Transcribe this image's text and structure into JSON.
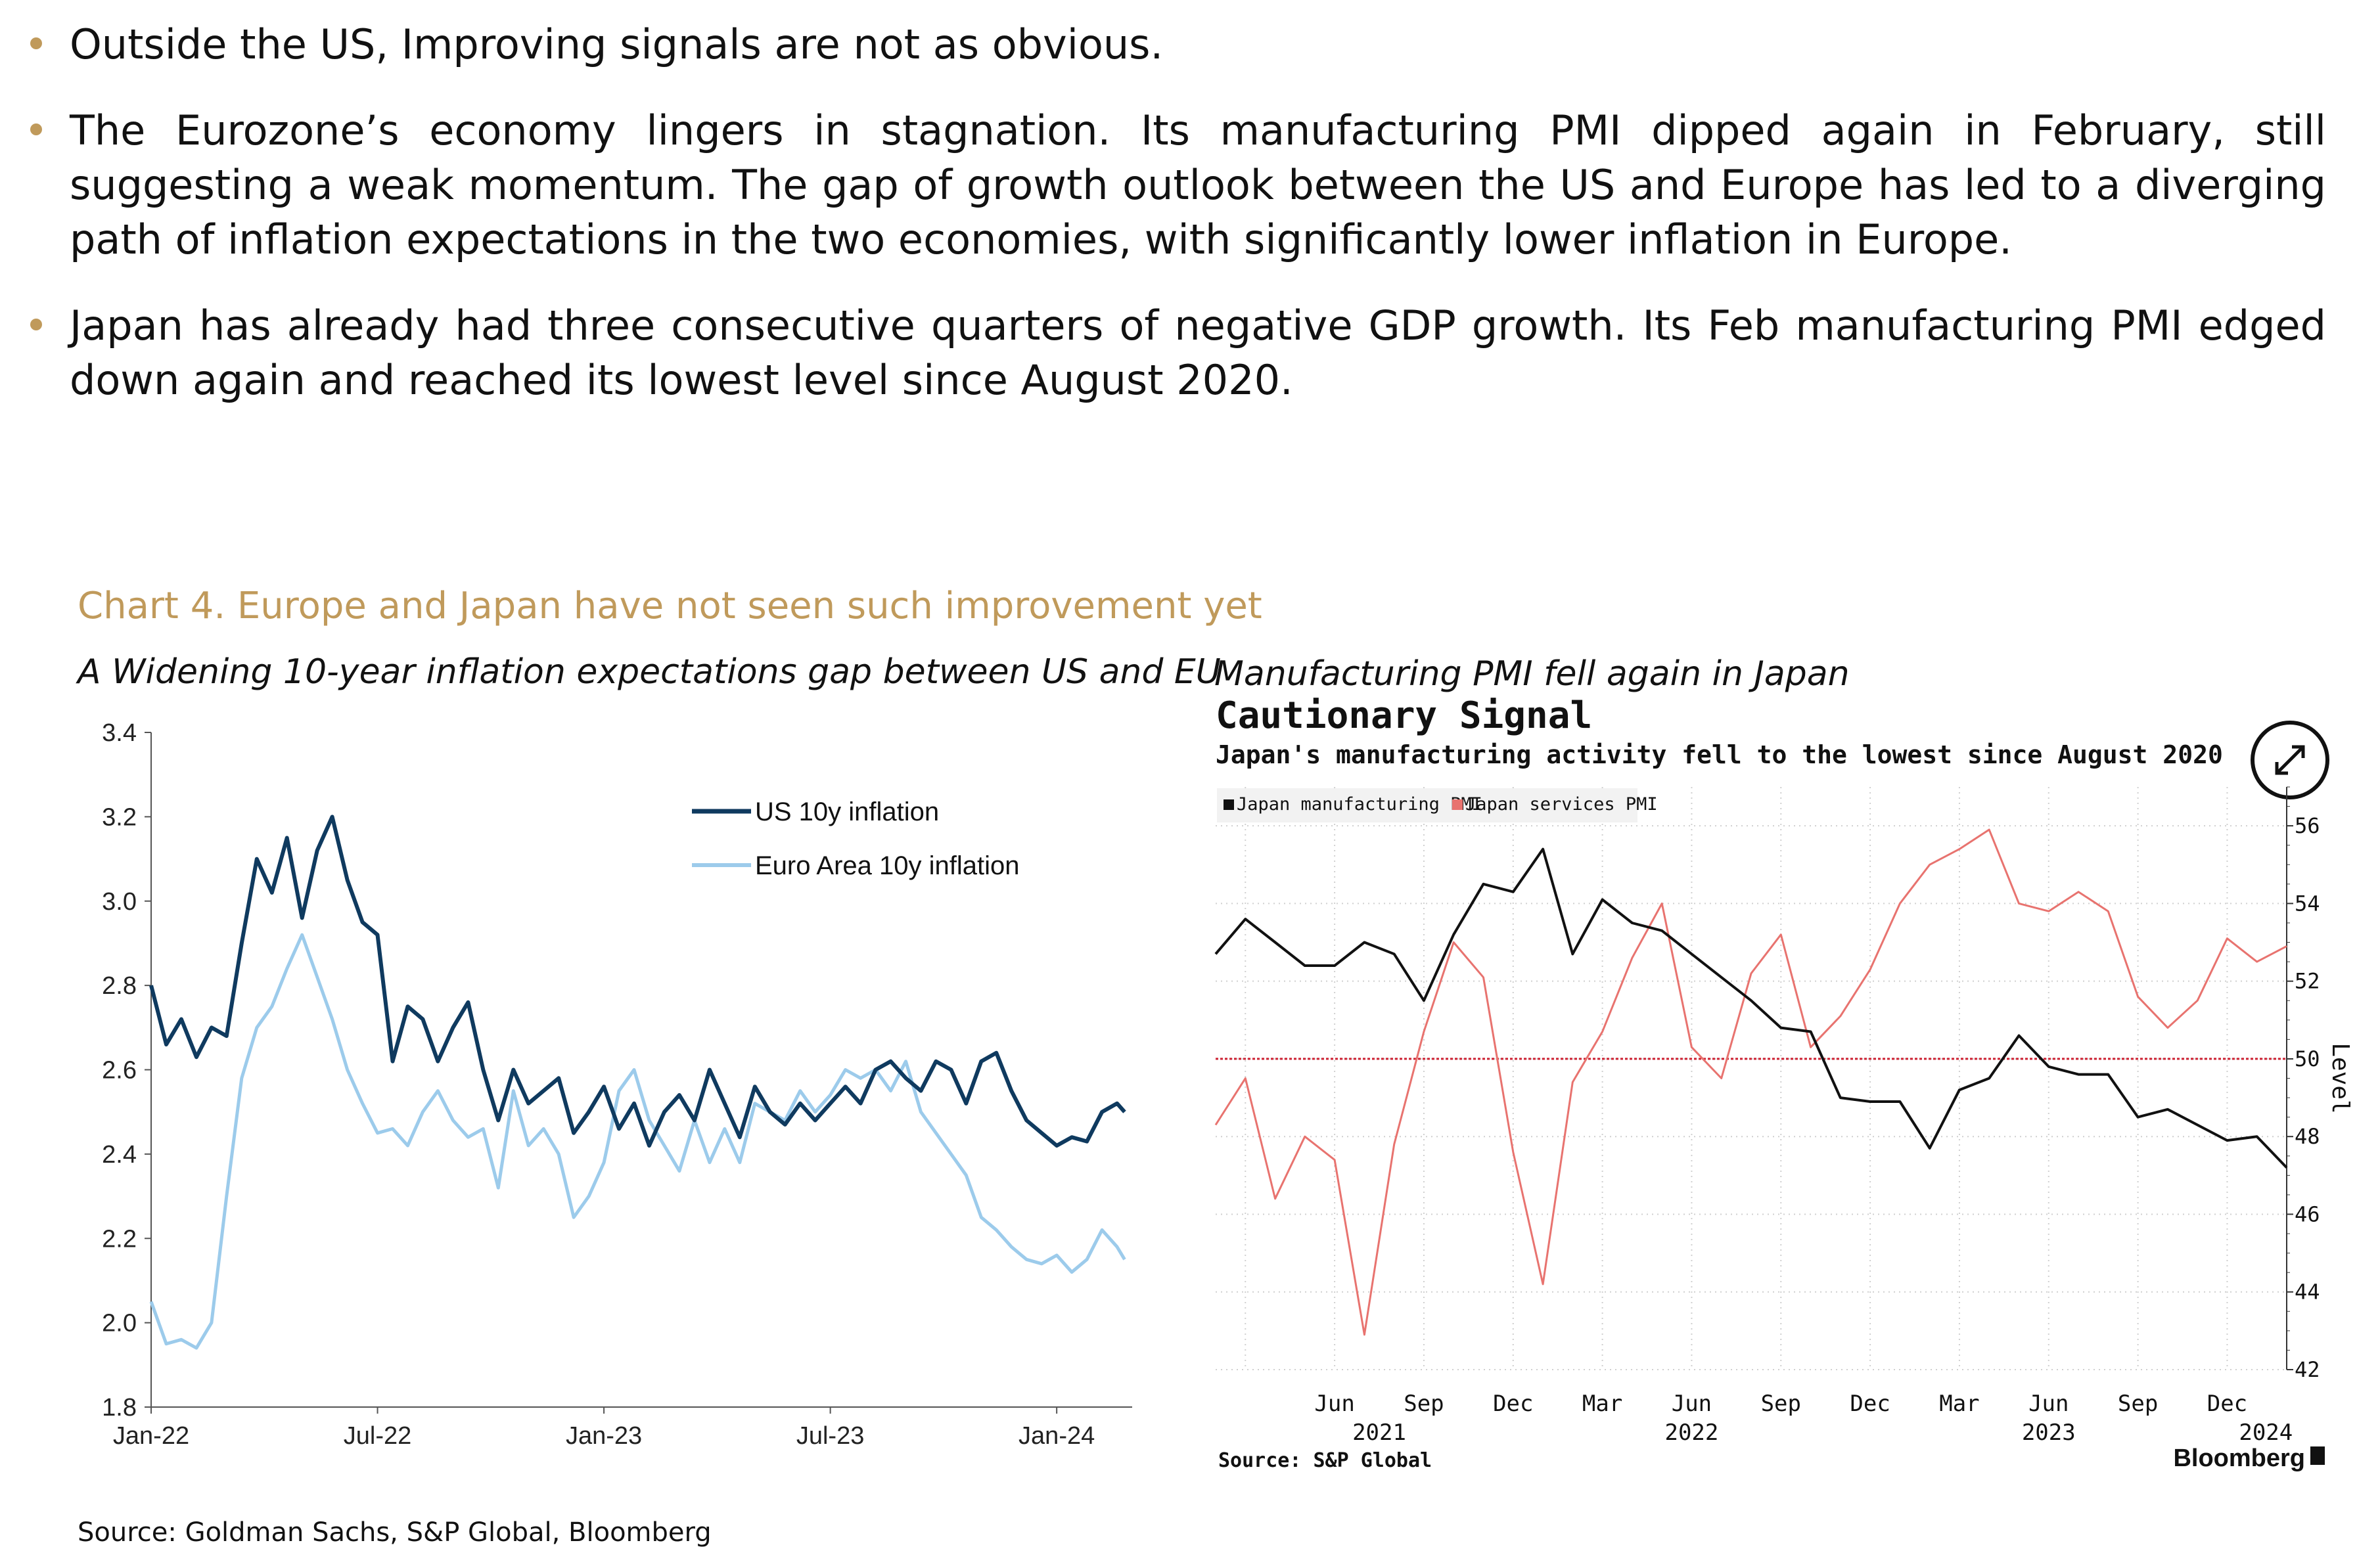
{
  "bullets": [
    "Outside the US, Improving signals are not as obvious.",
    "The Eurozone’s economy lingers in stagnation. Its manufacturing PMI dipped again in February, still suggesting a weak momentum. The gap of growth outlook between the US and Europe has led to a diverging path of inflation expectations in the two economies, with significantly lower inflation in Europe.",
    "Japan has already had three consecutive quarters of negative GDP growth. Its Feb manufacturing PMI edged down again and reached its lowest level since August 2020."
  ],
  "chart_title": "Chart 4. Europe and Japan have not seen such improvement yet",
  "left_subtitle": "A Widening 10-year inflation expectations  gap between US and EU",
  "right_subtitle": "Manufacturing PMI fell again in Japan",
  "source": "Source: Goldman Sachs, S&P Global, Bloomberg",
  "colors": {
    "accent": "#c09a5b",
    "us_line": "#0f3a5f",
    "eu_line": "#9ccbeb",
    "jp_mfg": "#111111",
    "jp_svc": "#e8736f",
    "ref_line": "#cc2233"
  },
  "chart_data": [
    {
      "type": "line",
      "title": "A Widening 10-year inflation expectations  gap between US and EU",
      "xlabel": "",
      "ylabel": "",
      "x_range": [
        0,
        26
      ],
      "ylim": [
        1.8,
        3.4
      ],
      "yticks": [
        1.8,
        2.0,
        2.2,
        2.4,
        2.6,
        2.8,
        3.0,
        3.2,
        3.4
      ],
      "ytick_labels": [
        "1.8",
        "2.0",
        "2.2",
        "2.4",
        "2.6",
        "2.8",
        "3.0",
        "3.2",
        "3.4"
      ],
      "xticks": [
        0,
        6,
        12,
        18,
        24
      ],
      "xtick_labels": [
        "Jan-22",
        "Jul-22",
        "Jan-23",
        "Jul-23",
        "Jan-24"
      ],
      "legend_position": "top-right",
      "series": [
        {
          "name": "US 10y inflation",
          "x": [
            0,
            0.4,
            0.8,
            1.2,
            1.6,
            2.0,
            2.4,
            2.8,
            3.2,
            3.6,
            4.0,
            4.4,
            4.8,
            5.2,
            5.6,
            6.0,
            6.4,
            6.8,
            7.2,
            7.6,
            8.0,
            8.4,
            8.8,
            9.2,
            9.6,
            10.0,
            10.4,
            10.8,
            11.2,
            11.6,
            12.0,
            12.4,
            12.8,
            13.2,
            13.6,
            14.0,
            14.4,
            14.8,
            15.2,
            15.6,
            16.0,
            16.4,
            16.8,
            17.2,
            17.6,
            18.0,
            18.4,
            18.8,
            19.2,
            19.6,
            20.0,
            20.4,
            20.8,
            21.2,
            21.6,
            22.0,
            22.4,
            22.8,
            23.2,
            23.6,
            24.0,
            24.4,
            24.8,
            25.2,
            25.6,
            25.8
          ],
          "values": [
            2.8,
            2.66,
            2.72,
            2.63,
            2.7,
            2.68,
            2.9,
            3.1,
            3.02,
            3.15,
            2.96,
            3.12,
            3.2,
            3.05,
            2.95,
            2.92,
            2.62,
            2.75,
            2.72,
            2.62,
            2.7,
            2.76,
            2.6,
            2.48,
            2.6,
            2.52,
            2.55,
            2.58,
            2.45,
            2.5,
            2.56,
            2.46,
            2.52,
            2.42,
            2.5,
            2.54,
            2.48,
            2.6,
            2.52,
            2.44,
            2.56,
            2.5,
            2.47,
            2.52,
            2.48,
            2.52,
            2.56,
            2.52,
            2.6,
            2.62,
            2.58,
            2.55,
            2.62,
            2.6,
            2.52,
            2.62,
            2.64,
            2.55,
            2.48,
            2.45,
            2.42,
            2.44,
            2.43,
            2.5,
            2.52,
            2.5
          ]
        },
        {
          "name": "Euro Area 10y inflation",
          "x": [
            0,
            0.4,
            0.8,
            1.2,
            1.6,
            2.0,
            2.4,
            2.8,
            3.2,
            3.6,
            4.0,
            4.4,
            4.8,
            5.2,
            5.6,
            6.0,
            6.4,
            6.8,
            7.2,
            7.6,
            8.0,
            8.4,
            8.8,
            9.2,
            9.6,
            10.0,
            10.4,
            10.8,
            11.2,
            11.6,
            12.0,
            12.4,
            12.8,
            13.2,
            13.6,
            14.0,
            14.4,
            14.8,
            15.2,
            15.6,
            16.0,
            16.4,
            16.8,
            17.2,
            17.6,
            18.0,
            18.4,
            18.8,
            19.2,
            19.6,
            20.0,
            20.4,
            20.8,
            21.2,
            21.6,
            22.0,
            22.4,
            22.8,
            23.2,
            23.6,
            24.0,
            24.4,
            24.8,
            25.2,
            25.6,
            25.8
          ],
          "values": [
            2.05,
            1.95,
            1.96,
            1.94,
            2.0,
            2.3,
            2.58,
            2.7,
            2.75,
            2.84,
            2.92,
            2.82,
            2.72,
            2.6,
            2.52,
            2.45,
            2.46,
            2.42,
            2.5,
            2.55,
            2.48,
            2.44,
            2.46,
            2.32,
            2.55,
            2.42,
            2.46,
            2.4,
            2.25,
            2.3,
            2.38,
            2.55,
            2.6,
            2.48,
            2.42,
            2.36,
            2.48,
            2.38,
            2.46,
            2.38,
            2.52,
            2.5,
            2.48,
            2.55,
            2.5,
            2.54,
            2.6,
            2.58,
            2.6,
            2.55,
            2.62,
            2.5,
            2.45,
            2.4,
            2.35,
            2.25,
            2.22,
            2.18,
            2.15,
            2.14,
            2.16,
            2.12,
            2.15,
            2.22,
            2.18,
            2.15
          ]
        }
      ]
    },
    {
      "type": "line",
      "title": "Cautionary Signal",
      "subtitle": "Japan's manufacturing activity fell to the lowest since August 2020",
      "xlabel": "",
      "ylabel": "Level",
      "y_axis_side": "right",
      "ylim": [
        42,
        57
      ],
      "yticks": [
        42,
        44,
        46,
        48,
        50,
        52,
        54,
        56
      ],
      "ytick_labels": [
        "42",
        "44",
        "46",
        "48",
        "50",
        "52",
        "54",
        "56"
      ],
      "categories": [
        "Feb 2021",
        "Mar 2021",
        "Apr 2021",
        "May 2021",
        "Jun 2021",
        "Jul 2021",
        "Aug 2021",
        "Sep 2021",
        "Oct 2021",
        "Nov 2021",
        "Dec 2021",
        "Jan 2022",
        "Feb 2022",
        "Mar 2022",
        "Apr 2022",
        "May 2022",
        "Jun 2022",
        "Jul 2022",
        "Aug 2022",
        "Sep 2022",
        "Oct 2022",
        "Nov 2022",
        "Dec 2022",
        "Jan 2023",
        "Feb 2023",
        "Mar 2023",
        "Apr 2023",
        "May 2023",
        "Jun 2023",
        "Jul 2023",
        "Aug 2023",
        "Sep 2023",
        "Oct 2023",
        "Nov 2023",
        "Dec 2023",
        "Jan 2024",
        "Feb 2024"
      ],
      "x_tick_month_labels": [
        "Jun",
        "Sep",
        "Dec",
        "Mar",
        "Jun",
        "Sep",
        "Dec",
        "Mar",
        "Jun",
        "Sep",
        "Dec"
      ],
      "x_tick_month_index": [
        4,
        7,
        10,
        13,
        16,
        19,
        22,
        25,
        28,
        31,
        34
      ],
      "x_tick_year_labels": [
        "2021",
        "2022",
        "2023",
        "2024"
      ],
      "x_tick_year_index": [
        5.5,
        16,
        28,
        35.3
      ],
      "reference_line": 50,
      "legend_position": "top-left",
      "series": [
        {
          "name": "Japan manufacturing PMI",
          "values": [
            52.7,
            53.6,
            53.0,
            52.4,
            52.4,
            53.0,
            52.7,
            51.5,
            53.2,
            54.5,
            54.3,
            55.4,
            52.7,
            54.1,
            53.5,
            53.3,
            52.7,
            52.1,
            51.5,
            50.8,
            50.7,
            49.0,
            48.9,
            48.9,
            47.7,
            49.2,
            49.5,
            50.6,
            49.8,
            49.6,
            49.6,
            48.5,
            48.7,
            48.3,
            47.9,
            48.0,
            47.2
          ]
        },
        {
          "name": "Japan services PMI",
          "values": [
            48.3,
            49.5,
            46.4,
            48.0,
            47.4,
            42.9,
            47.8,
            50.7,
            53.0,
            52.1,
            47.6,
            44.2,
            49.4,
            50.7,
            52.6,
            54.0,
            50.3,
            49.5,
            52.2,
            53.2,
            50.3,
            51.1,
            52.3,
            54.0,
            55.0,
            55.4,
            55.9,
            54.0,
            53.8,
            54.3,
            53.8,
            51.6,
            50.8,
            51.5,
            53.1,
            52.5,
            52.9
          ]
        }
      ],
      "source": "Source: S&P Global",
      "brand": "Bloomberg"
    }
  ]
}
